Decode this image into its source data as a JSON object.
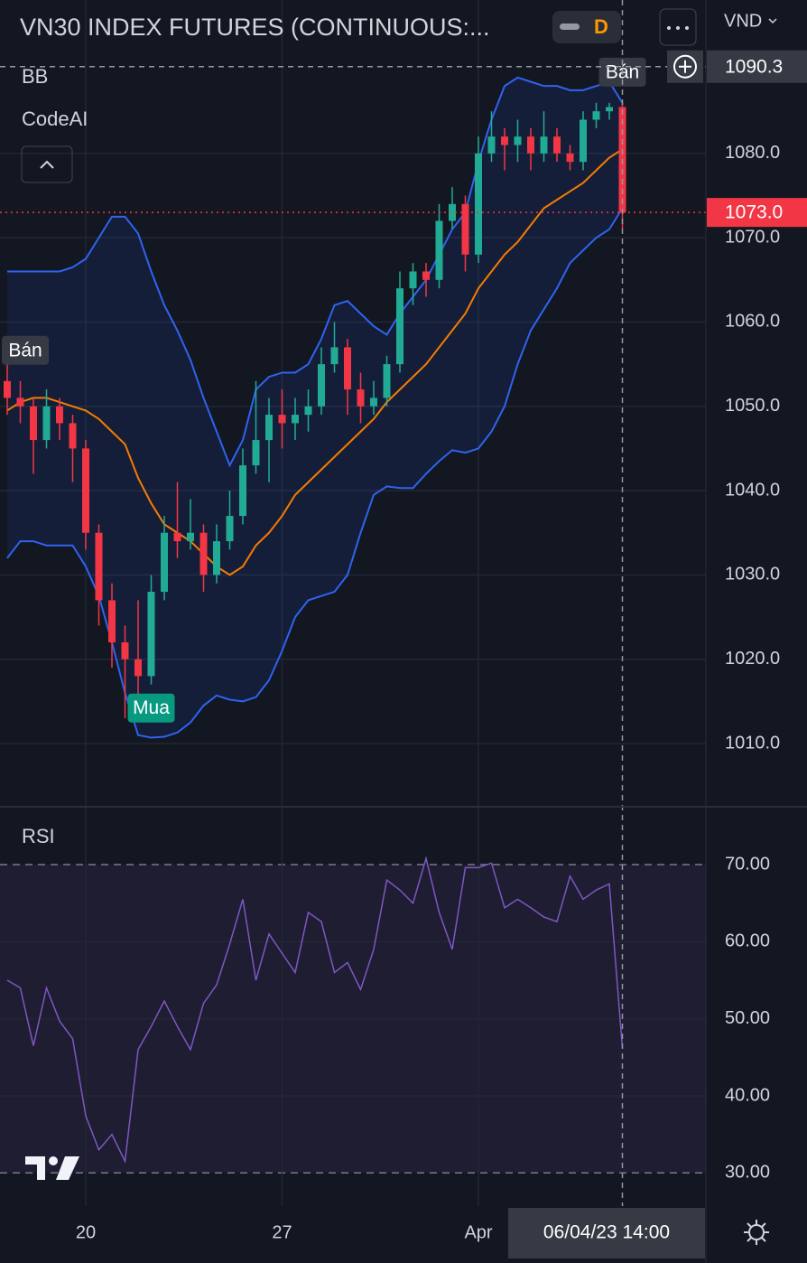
{
  "title": "VN30 INDEX FUTURES (CONTINUOUS:...",
  "timeframe": "D",
  "currency": "VND",
  "indicators": [
    "BB",
    "CodeAI"
  ],
  "chart_data": [
    {
      "type": "candlestick",
      "categories": [
        null,
        null,
        null,
        null,
        null,
        null,
        "20",
        null,
        null,
        null,
        null,
        null,
        null,
        null,
        null,
        null,
        null,
        null,
        null,
        null,
        null,
        "27",
        null,
        null,
        null,
        null,
        null,
        null,
        null,
        null,
        null,
        null,
        null,
        null,
        null,
        null,
        "Apr",
        null,
        null,
        null,
        null,
        null,
        null,
        null,
        null,
        null,
        null,
        null
      ],
      "open": [
        1053,
        1051,
        1050,
        1046,
        1050,
        1048,
        1045,
        1035,
        1027,
        1022,
        1020,
        1018,
        1028,
        1035,
        1034,
        1035,
        1030,
        1034,
        1037,
        1043,
        1046,
        1049,
        1048,
        1049,
        1050,
        1055,
        1057,
        1052,
        1050,
        1051,
        1055,
        1064,
        1066,
        1065,
        1072,
        1074,
        1068,
        1080,
        1082,
        1081,
        1082,
        1080,
        1082,
        1080,
        1079,
        1084,
        1085,
        1085.5
      ],
      "high": [
        1055,
        1053,
        1051,
        1052,
        1051,
        1049,
        1046,
        1036,
        1029,
        1024,
        1027,
        1030,
        1037,
        1041,
        1039,
        1036,
        1036,
        1040,
        1045,
        1053,
        1051,
        1052,
        1051,
        1052,
        1057,
        1060,
        1058,
        1054,
        1053,
        1056,
        1066,
        1067,
        1067,
        1074,
        1076,
        1075,
        1082,
        1085,
        1083,
        1084,
        1083,
        1085,
        1083,
        1081,
        1085,
        1086,
        1086,
        1086
      ],
      "low": [
        1049,
        1048,
        1042,
        1045,
        1046,
        1041,
        1033,
        1024,
        1019,
        1013,
        1015,
        1017,
        1027,
        1032,
        1033,
        1028,
        1029,
        1033,
        1036,
        1042,
        1041,
        1045,
        1046,
        1047,
        1049,
        1054,
        1049,
        1048,
        1049,
        1050,
        1054,
        1062,
        1063,
        1064,
        1071,
        1066,
        1067,
        1079,
        1078,
        1079,
        1078,
        1079,
        1079,
        1078,
        1078,
        1083,
        1084,
        1071
      ],
      "close": [
        1051,
        1050,
        1046,
        1050,
        1048,
        1045,
        1035,
        1027,
        1022,
        1020,
        1018,
        1028,
        1035,
        1034,
        1035,
        1030,
        1034,
        1037,
        1043,
        1046,
        1049,
        1048,
        1049,
        1050,
        1055,
        1057,
        1052,
        1050,
        1051,
        1055,
        1064,
        1066,
        1065,
        1072,
        1074,
        1068,
        1080,
        1082,
        1081,
        1082,
        1080,
        1082,
        1080,
        1079,
        1084,
        1085,
        1085.5,
        1073
      ],
      "up_color": "#22ab94",
      "down_color": "#f23645",
      "overlays": [
        {
          "color": "#2f63f0",
          "values": [
            1066,
            1066,
            1066,
            1066,
            1066,
            1066.5,
            1067.5,
            1070,
            1072.5,
            1072.5,
            1070.5,
            1066,
            1062,
            1059,
            1055.5,
            1051,
            1047,
            1043,
            1046,
            1052,
            1053.5,
            1054,
            1054,
            1055,
            1058,
            1062,
            1062.5,
            1061,
            1059.5,
            1058.5,
            1061,
            1063,
            1065,
            1068,
            1071,
            1073,
            1079,
            1084,
            1088,
            1089,
            1088.5,
            1088,
            1088,
            1087.5,
            1087.5,
            1088,
            1088.5,
            1086
          ]
        },
        {
          "color": "#f57c00",
          "values": [
            1049.5,
            1050.5,
            1051,
            1051,
            1050.5,
            1050,
            1049.5,
            1048.5,
            1047,
            1045.5,
            1041.5,
            1038.5,
            1036,
            1035,
            1034,
            1032.5,
            1031,
            1030,
            1031,
            1033.5,
            1035,
            1037,
            1039.5,
            1041,
            1042.5,
            1044,
            1045.5,
            1047,
            1048.5,
            1050.5,
            1052,
            1053.5,
            1055,
            1057,
            1059,
            1061,
            1064,
            1066,
            1068,
            1069.5,
            1071.5,
            1073.5,
            1074.5,
            1075.5,
            1076.5,
            1078,
            1079.5,
            1080.5
          ]
        },
        {
          "color": "#2f63f0",
          "values": [
            1032,
            1034,
            1034,
            1033.5,
            1033.5,
            1033.5,
            1031,
            1027.5,
            1022,
            1016,
            1011,
            1010.7,
            1010.8,
            1011.3,
            1012.5,
            1014.5,
            1015.7,
            1015.2,
            1015,
            1015.5,
            1017.5,
            1021,
            1025,
            1027,
            1027.5,
            1028,
            1030,
            1035,
            1039.5,
            1040.5,
            1040.3,
            1040.3,
            1042,
            1043.5,
            1044.8,
            1044.5,
            1045,
            1047,
            1050,
            1055,
            1059,
            1061.5,
            1064,
            1067,
            1068.5,
            1070,
            1071,
            1073.5
          ]
        }
      ],
      "annotations": [
        {
          "text": "Bán",
          "index": 1,
          "kind": "sell",
          "color": "#363a45"
        },
        {
          "text": "Mua",
          "index": 11,
          "kind": "buy",
          "color": "#089981"
        },
        {
          "text": "Bán",
          "index": 47,
          "kind": "sell",
          "color": "#363a45"
        }
      ],
      "last_price": {
        "value": 1073,
        "label": "1073.0"
      },
      "last_color": "#f23645",
      "crosshair": {
        "price": 1090.3,
        "time": "06/04/23 14:00"
      },
      "ylim": [
        1002.5,
        1098.2
      ],
      "yticks": [
        {
          "value": 1010,
          "label": "1010.0"
        },
        {
          "value": 1020,
          "label": "1020.0"
        },
        {
          "value": 1030,
          "label": "1030.0"
        },
        {
          "value": 1040,
          "label": "1040.0"
        },
        {
          "value": 1050,
          "label": "1050.0"
        },
        {
          "value": 1060,
          "label": "1060.0"
        },
        {
          "value": 1070,
          "label": "1070.0"
        },
        {
          "value": 1080,
          "label": "1080.0"
        }
      ],
      "grid": true
    },
    {
      "type": "line",
      "title": "RSI",
      "color": "#7e57c2",
      "values": [
        55,
        54,
        46.5,
        54,
        49.7,
        47.4,
        37.4,
        33,
        35,
        31.5,
        46,
        49,
        52.3,
        49,
        46,
        52,
        54.4,
        59.7,
        65.5,
        55,
        61,
        58.5,
        56,
        63.8,
        62.6,
        56,
        57.3,
        53.8,
        59,
        68,
        66.7,
        65,
        70.8,
        63.8,
        59,
        69.6,
        69.6,
        70.2,
        64.4,
        65.5,
        64.4,
        63.2,
        62.6,
        68.5,
        65.5,
        66.7,
        67.5,
        46.2
      ],
      "band": [
        30,
        70
      ],
      "ylim": [
        25.7,
        77.5
      ],
      "yticks": [
        {
          "value": 30,
          "label": "30.00"
        },
        {
          "value": 40,
          "label": "40.00"
        },
        {
          "value": 50,
          "label": "50.00"
        },
        {
          "value": 60,
          "label": "60.00"
        },
        {
          "value": 70,
          "label": "70.00"
        }
      ],
      "grid": true
    }
  ]
}
